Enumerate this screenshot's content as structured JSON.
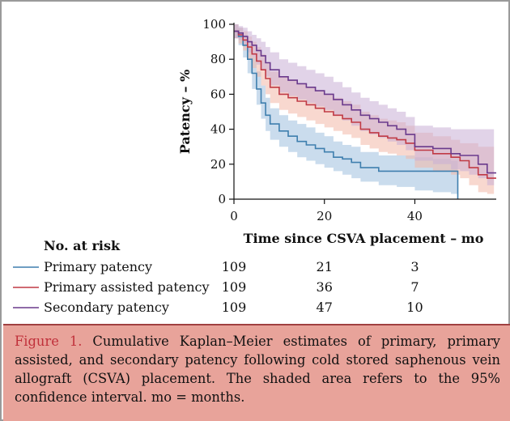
{
  "chart_data": {
    "type": "line",
    "subtype": "kaplan-meier step with shaded confidence bands",
    "ylabel": "Patency – %",
    "xlabel": "Time since CSVA placement – mo",
    "xlim": [
      0,
      58
    ],
    "ylim": [
      0,
      100
    ],
    "xticks": [
      0,
      20,
      40
    ],
    "yticks": [
      0,
      20,
      40,
      60,
      80,
      100
    ],
    "series": [
      {
        "name": "Primary patency",
        "color": "#3f7fae",
        "band_color": "#9fc0df",
        "x": [
          0,
          1,
          2,
          3,
          4,
          5,
          6,
          7,
          8,
          10,
          12,
          14,
          16,
          18,
          20,
          22,
          24,
          26,
          28,
          32,
          36,
          40,
          44,
          48,
          49.5
        ],
        "y": [
          96,
          93,
          88,
          80,
          72,
          63,
          55,
          48,
          43,
          39,
          36,
          33,
          31,
          29,
          27,
          24,
          23,
          21,
          18,
          16,
          16,
          16,
          16,
          16,
          0
        ],
        "lower": [
          92,
          88,
          81,
          72,
          63,
          54,
          46,
          39,
          34,
          30,
          27,
          24,
          22,
          20,
          18,
          16,
          14,
          12,
          10,
          8,
          7,
          5,
          4,
          3,
          0
        ],
        "upper": [
          100,
          98,
          94,
          88,
          81,
          73,
          65,
          58,
          52,
          48,
          45,
          43,
          41,
          38,
          36,
          33,
          31,
          30,
          27,
          25,
          25,
          24,
          23,
          22,
          22
        ]
      },
      {
        "name": "Primary assisted patency",
        "color": "#c03a45",
        "band_color": "#f3b8a8",
        "x": [
          0,
          1,
          2,
          3,
          4,
          5,
          6,
          7,
          8,
          10,
          12,
          14,
          16,
          18,
          20,
          22,
          24,
          26,
          28,
          30,
          32,
          34,
          36,
          38,
          40,
          44,
          48,
          50,
          52,
          54,
          56,
          58
        ],
        "y": [
          96,
          94,
          91,
          87,
          83,
          79,
          74,
          69,
          64,
          60,
          58,
          56,
          54,
          52,
          50,
          48,
          46,
          44,
          40,
          38,
          36,
          35,
          34,
          32,
          28,
          26,
          24,
          22,
          18,
          14,
          12,
          12
        ],
        "lower": [
          92,
          89,
          85,
          80,
          75,
          70,
          65,
          60,
          55,
          51,
          49,
          47,
          45,
          43,
          41,
          39,
          37,
          35,
          31,
          29,
          27,
          26,
          25,
          23,
          18,
          16,
          14,
          12,
          8,
          4,
          3,
          3
        ],
        "upper": [
          100,
          98,
          96,
          93,
          90,
          87,
          83,
          78,
          73,
          70,
          68,
          66,
          64,
          62,
          60,
          58,
          56,
          54,
          50,
          48,
          46,
          45,
          44,
          42,
          38,
          36,
          34,
          32,
          32,
          30,
          30,
          30
        ]
      },
      {
        "name": "Secondary patency",
        "color": "#6a3a8c",
        "band_color": "#c9aed6",
        "x": [
          0,
          1,
          2,
          3,
          4,
          5,
          6,
          7,
          8,
          10,
          12,
          14,
          16,
          18,
          20,
          22,
          24,
          26,
          28,
          30,
          32,
          34,
          36,
          38,
          40,
          44,
          48,
          50,
          52,
          54,
          56,
          58
        ],
        "y": [
          96,
          95,
          93,
          90,
          88,
          85,
          82,
          78,
          74,
          70,
          68,
          66,
          64,
          62,
          60,
          57,
          54,
          51,
          48,
          46,
          44,
          42,
          40,
          37,
          30,
          29,
          26,
          25,
          25,
          20,
          15,
          15
        ],
        "lower": [
          92,
          91,
          88,
          84,
          81,
          77,
          74,
          70,
          65,
          61,
          59,
          57,
          55,
          53,
          51,
          48,
          45,
          42,
          39,
          37,
          35,
          33,
          31,
          28,
          22,
          20,
          17,
          16,
          14,
          12,
          8,
          8
        ],
        "upper": [
          100,
          99,
          98,
          96,
          94,
          92,
          90,
          87,
          84,
          80,
          78,
          76,
          74,
          72,
          70,
          67,
          64,
          61,
          58,
          56,
          54,
          52,
          50,
          47,
          42,
          41,
          40,
          40,
          40,
          40,
          40,
          40
        ]
      }
    ]
  },
  "risk_table": {
    "heading": "No. at risk",
    "rows": [
      {
        "name": "Primary patency",
        "color": "#3f7fae",
        "counts": [
          "109",
          "21",
          "3"
        ]
      },
      {
        "name": "Primary assisted patency",
        "color": "#c03a45",
        "counts": [
          "109",
          "36",
          "7"
        ]
      },
      {
        "name": "Secondary patency",
        "color": "#6a3a8c",
        "counts": [
          "109",
          "47",
          "10"
        ]
      }
    ]
  },
  "caption": {
    "label": "Figure 1.",
    "text": "Cumulative Kaplan–Meier estimates of primary, primary assisted, and secondary patency following cold stored saphenous vein allograft (CSVA) placement. The shaded area refers to the 95% confidence interval. mo = months."
  }
}
